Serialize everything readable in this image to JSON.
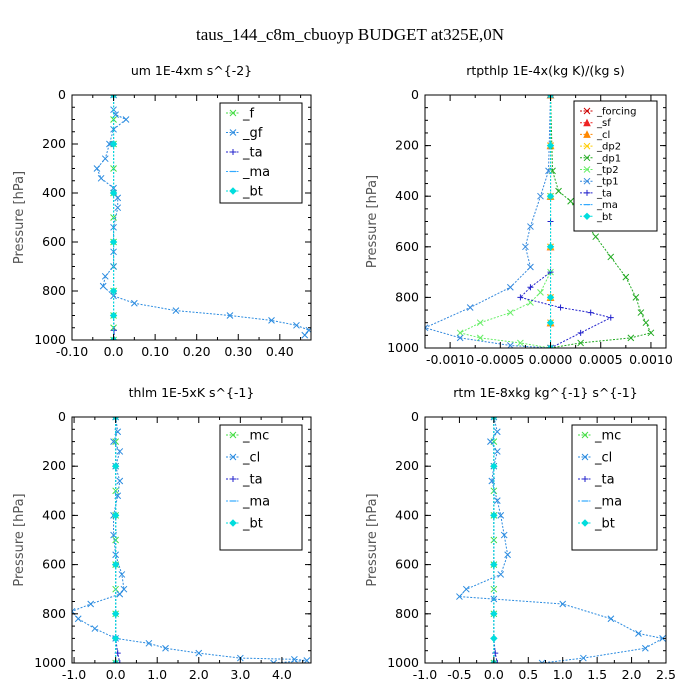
{
  "figure_title": "taus_144_c8m_cbuoyp  BUDGET at325E,0N",
  "chart_data": [
    {
      "type": "line",
      "title": "um   1E-4xm s^{-2}",
      "ylabel": "Pressure [hPa]",
      "xlim": [
        -0.1,
        0.475
      ],
      "xticks": [
        "-0.10",
        "0.0",
        "0.10",
        "0.20",
        "0.30",
        "0.40"
      ],
      "xtick_values": [
        -0.1,
        0.0,
        0.1,
        0.2,
        0.3,
        0.4
      ],
      "ylim": [
        0,
        1000
      ],
      "yticks": [
        0,
        200,
        400,
        600,
        800,
        1000
      ],
      "legend_position": "top-right",
      "series": [
        {
          "name": "_f",
          "color": "#44dd44",
          "marker": "x",
          "x": [
            0,
            0,
            0,
            0,
            0,
            0,
            0,
            0,
            0,
            0,
            0,
            0
          ],
          "y": [
            0,
            100,
            200,
            300,
            400,
            500,
            600,
            700,
            800,
            900,
            950,
            1000
          ]
        },
        {
          "name": "_gf",
          "color": "#2a8be0",
          "marker": "x",
          "x": [
            0.0,
            0.0,
            0.005,
            0.03,
            0.0,
            -0.01,
            -0.02,
            -0.04,
            -0.03,
            0.0,
            0.01,
            0.01,
            0.0,
            0.0,
            0.0,
            -0.02,
            -0.025,
            0.0,
            0.05,
            0.15,
            0.28,
            0.38,
            0.44,
            0.47,
            0.46
          ],
          "y": [
            0,
            60,
            80,
            100,
            140,
            200,
            260,
            300,
            340,
            380,
            420,
            460,
            540,
            640,
            700,
            740,
            780,
            820,
            850,
            880,
            900,
            920,
            940,
            960,
            980
          ]
        },
        {
          "name": "_ta",
          "color": "#2222cc",
          "marker": "plus",
          "x": [
            0,
            0,
            0,
            0,
            0,
            0,
            0.001,
            0.002
          ],
          "y": [
            0,
            200,
            400,
            600,
            800,
            900,
            960,
            1000
          ]
        },
        {
          "name": "_ma",
          "color": "#33aaff",
          "marker": "dash",
          "x": [
            0,
            0,
            0,
            0,
            0,
            0,
            0
          ],
          "y": [
            0,
            200,
            400,
            600,
            800,
            900,
            1000
          ]
        },
        {
          "name": "_bt",
          "color": "#00dddd",
          "marker": "diamond",
          "x": [
            0,
            0,
            0,
            0,
            0,
            0,
            0
          ],
          "y": [
            0,
            200,
            400,
            600,
            800,
            900,
            1000
          ]
        }
      ]
    },
    {
      "type": "line",
      "title": "rtpthlp   1E-4x(kg K)/(kg s)",
      "ylabel": "Pressure [hPa]",
      "xlim": [
        -0.00125,
        0.00115
      ],
      "xticks": [
        "-0.0010",
        "-0.0005",
        "0.0000",
        "0.0005",
        "0.0010"
      ],
      "xtick_values": [
        -0.001,
        -0.0005,
        0.0,
        0.0005,
        0.001
      ],
      "ylim": [
        0,
        1000
      ],
      "yticks": [
        0,
        200,
        400,
        600,
        800,
        1000
      ],
      "legend_position": "top-right",
      "series": [
        {
          "name": "_forcing",
          "color": "#cc0000",
          "marker": "x",
          "x": [
            0,
            0,
            0,
            0,
            0,
            0,
            0
          ],
          "y": [
            0,
            200,
            400,
            600,
            800,
            900,
            1000
          ]
        },
        {
          "name": "_sf",
          "color": "#ee2222",
          "marker": "triangle",
          "x": [
            0,
            0,
            0,
            0,
            0,
            0,
            0
          ],
          "y": [
            0,
            200,
            400,
            600,
            800,
            900,
            1000
          ]
        },
        {
          "name": "_cl",
          "color": "#ff8800",
          "marker": "triangle",
          "x": [
            0,
            0,
            0,
            0,
            0,
            0,
            0
          ],
          "y": [
            0,
            200,
            400,
            600,
            800,
            900,
            1000
          ]
        },
        {
          "name": "_dp2",
          "color": "#ffcc00",
          "marker": "x",
          "x": [
            0,
            0,
            0,
            0,
            0,
            0,
            0
          ],
          "y": [
            0,
            200,
            400,
            600,
            800,
            900,
            1000
          ]
        },
        {
          "name": "_dp1",
          "color": "#22aa22",
          "marker": "x",
          "x": [
            0,
            2e-05,
            8e-05,
            0.0002,
            0.0003,
            0.00045,
            0.0006,
            0.00075,
            0.00085,
            0.0009,
            0.00095,
            0.001,
            0.0008,
            0.0003,
            0.0
          ],
          "y": [
            0,
            300,
            380,
            420,
            480,
            560,
            640,
            720,
            800,
            860,
            900,
            940,
            960,
            980,
            1000
          ]
        },
        {
          "name": "_tp2",
          "color": "#66ee66",
          "marker": "x",
          "x": [
            0,
            0,
            0.0,
            -0.0001,
            -0.0002,
            -0.0004,
            -0.0007,
            -0.0009,
            -0.0007,
            -0.0003,
            0.0
          ],
          "y": [
            0,
            400,
            700,
            780,
            820,
            860,
            900,
            940,
            960,
            980,
            1000
          ]
        },
        {
          "name": "_tp1",
          "color": "#3388dd",
          "marker": "x",
          "x": [
            0,
            -2e-05,
            -0.0001,
            -0.0002,
            -0.00025,
            -0.0002,
            -0.0004,
            -0.0008,
            -0.00125,
            -0.0009,
            -0.0004,
            0.0
          ],
          "y": [
            0,
            300,
            400,
            520,
            600,
            680,
            760,
            840,
            920,
            960,
            990,
            1000
          ]
        },
        {
          "name": "_ta",
          "color": "#2222cc",
          "marker": "plus",
          "x": [
            0,
            0,
            0.0,
            -0.0002,
            -0.0003,
            0.0001,
            0.0004,
            0.0006,
            0.0003,
            0.0
          ],
          "y": [
            0,
            500,
            700,
            760,
            800,
            840,
            860,
            880,
            940,
            1000
          ]
        },
        {
          "name": "_ma",
          "color": "#33aaff",
          "marker": "dash",
          "x": [
            0,
            0,
            0,
            0,
            0,
            0,
            0
          ],
          "y": [
            0,
            200,
            400,
            600,
            800,
            900,
            1000
          ]
        },
        {
          "name": "_bt",
          "color": "#00dddd",
          "marker": "diamond",
          "x": [
            0,
            0,
            0,
            0,
            0,
            0,
            0
          ],
          "y": [
            0,
            200,
            400,
            600,
            800,
            900,
            1000
          ]
        }
      ]
    },
    {
      "type": "line",
      "title": "thlm   1E-5xK  s^{-1}",
      "ylabel": "Pressure [hPa]",
      "xlim": [
        -1.05,
        4.7
      ],
      "xticks": [
        "-1.0",
        "0.0",
        "1.0",
        "2.0",
        "3.0",
        "4.0"
      ],
      "xtick_values": [
        -1.0,
        0.0,
        1.0,
        2.0,
        3.0,
        4.0
      ],
      "ylim": [
        0,
        1000
      ],
      "yticks": [
        0,
        200,
        400,
        600,
        800,
        1000
      ],
      "legend_position": "top-right",
      "series": [
        {
          "name": "_mc",
          "color": "#44dd44",
          "marker": "x",
          "x": [
            0,
            0,
            0,
            0,
            0,
            0,
            0,
            0,
            0,
            0
          ],
          "y": [
            0,
            100,
            200,
            300,
            400,
            500,
            600,
            700,
            800,
            1000
          ]
        },
        {
          "name": "_cl",
          "color": "#2a8be0",
          "marker": "x",
          "x": [
            0.0,
            0.05,
            -0.05,
            0.1,
            0.0,
            0.1,
            0.05,
            -0.05,
            -0.05,
            0.0,
            0.15,
            0.2,
            0.1,
            -0.6,
            -1.05,
            -0.9,
            -0.5,
            0.0,
            0.8,
            1.2,
            2.0,
            3.0,
            4.3,
            4.6,
            3.8
          ],
          "y": [
            0,
            60,
            100,
            140,
            200,
            260,
            320,
            400,
            480,
            560,
            640,
            700,
            720,
            760,
            790,
            820,
            860,
            900,
            920,
            940,
            960,
            980,
            985,
            990,
            1000
          ]
        },
        {
          "name": "_ta",
          "color": "#2222cc",
          "marker": "plus",
          "x": [
            0,
            0,
            0,
            0,
            0,
            0,
            0.05,
            0.1
          ],
          "y": [
            0,
            200,
            400,
            600,
            800,
            900,
            960,
            1000
          ]
        },
        {
          "name": "_ma",
          "color": "#33aaff",
          "marker": "dash",
          "x": [
            0,
            0,
            0,
            0,
            0,
            0,
            0
          ],
          "y": [
            0,
            200,
            400,
            600,
            800,
            900,
            1000
          ]
        },
        {
          "name": "_bt",
          "color": "#00dddd",
          "marker": "diamond",
          "x": [
            0,
            0,
            0,
            0,
            0,
            0,
            0
          ],
          "y": [
            0,
            200,
            400,
            600,
            800,
            900,
            1000
          ]
        }
      ]
    },
    {
      "type": "line",
      "title": "rtm   1E-8xkg kg^{-1} s^{-1}",
      "ylabel": "Pressure [hPa]",
      "xlim": [
        -1.0,
        2.5
      ],
      "xticks": [
        "-1.0",
        "-0.5",
        "0.0",
        "0.5",
        "1.0",
        "1.5",
        "2.0",
        "2.5"
      ],
      "xtick_values": [
        -1.0,
        -0.5,
        0.0,
        0.5,
        1.0,
        1.5,
        2.0,
        2.5
      ],
      "ylim": [
        0,
        1000
      ],
      "yticks": [
        0,
        200,
        400,
        600,
        800,
        1000
      ],
      "legend_position": "top-right",
      "series": [
        {
          "name": "_mc",
          "color": "#44dd44",
          "marker": "x",
          "x": [
            0,
            0,
            0,
            0,
            0,
            0,
            0,
            0,
            0,
            0
          ],
          "y": [
            0,
            100,
            200,
            300,
            400,
            500,
            600,
            700,
            800,
            1000
          ]
        },
        {
          "name": "_cl",
          "color": "#2a8be0",
          "marker": "x",
          "x": [
            0.0,
            0.05,
            -0.05,
            0.05,
            0.0,
            -0.03,
            0.05,
            0.1,
            0.15,
            0.2,
            0.1,
            -0.4,
            -0.5,
            0.0,
            1.0,
            1.7,
            2.1,
            2.45,
            2.2,
            1.3,
            0.7
          ],
          "y": [
            0,
            60,
            100,
            140,
            200,
            260,
            340,
            400,
            480,
            560,
            640,
            700,
            730,
            740,
            760,
            820,
            880,
            900,
            940,
            980,
            1000
          ]
        },
        {
          "name": "_ta",
          "color": "#2222cc",
          "marker": "plus",
          "x": [
            0,
            0,
            0,
            0,
            0,
            0,
            0.02,
            0.05
          ],
          "y": [
            0,
            200,
            400,
            600,
            800,
            900,
            960,
            1000
          ]
        },
        {
          "name": "_ma",
          "color": "#33aaff",
          "marker": "dash",
          "x": [
            0,
            0,
            0,
            0,
            0,
            0,
            0
          ],
          "y": [
            0,
            200,
            400,
            600,
            800,
            900,
            1000
          ]
        },
        {
          "name": "_bt",
          "color": "#00dddd",
          "marker": "diamond",
          "x": [
            0,
            0,
            0,
            0,
            0,
            0,
            0
          ],
          "y": [
            0,
            200,
            400,
            600,
            800,
            900,
            1000
          ]
        }
      ]
    }
  ]
}
